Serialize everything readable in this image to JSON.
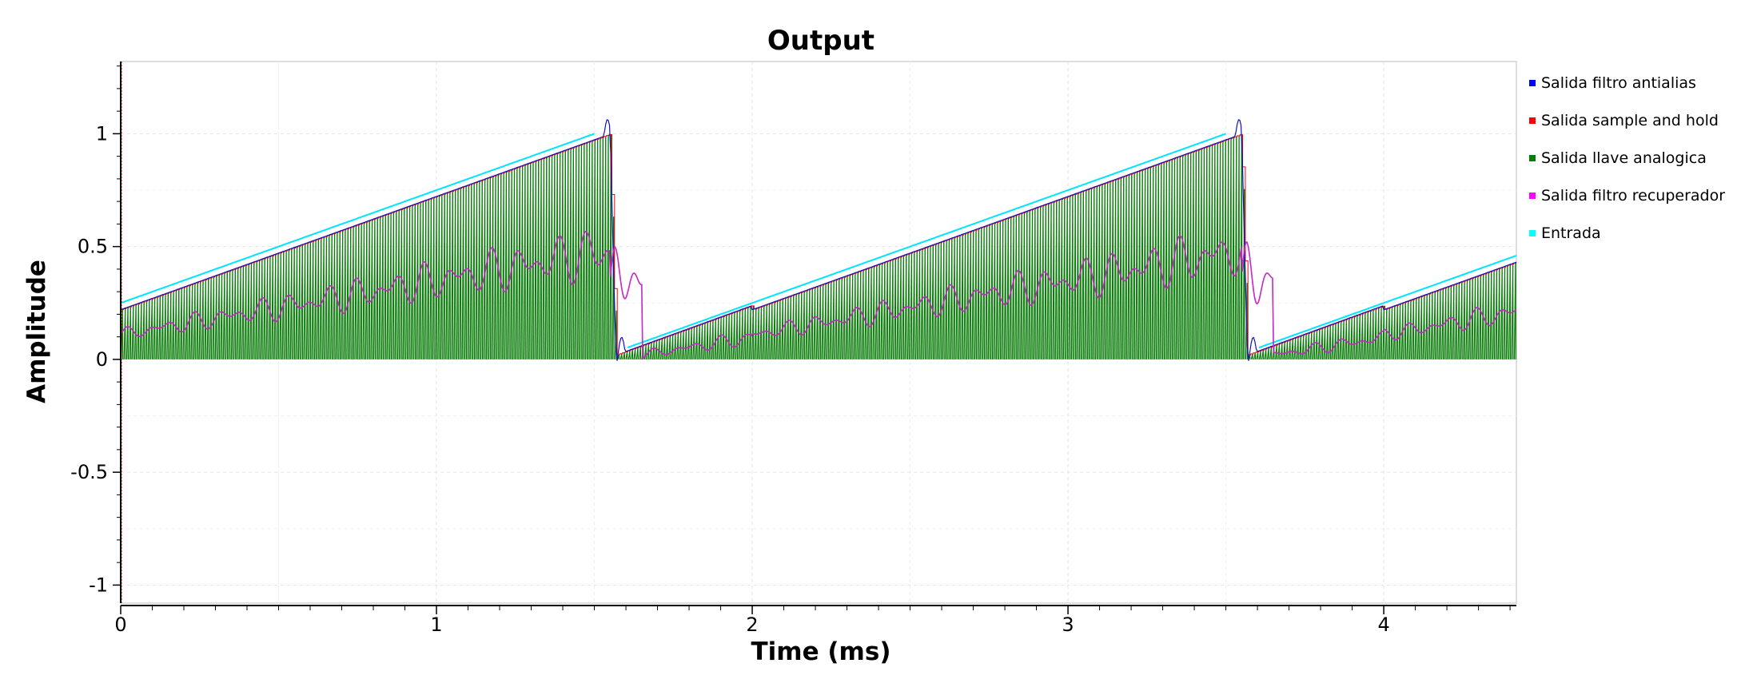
{
  "chart_data": {
    "type": "line",
    "title": "Output",
    "xlabel": "Time (ms)",
    "ylabel": "Amplitude",
    "xlim": [
      0,
      4.42
    ],
    "ylim": [
      -1.08,
      1.32
    ],
    "xticks": [
      0,
      1,
      2,
      3,
      4
    ],
    "xtick_labels": [
      "0",
      "1",
      "2",
      "3",
      "4"
    ],
    "yticks": [
      1,
      0.5,
      0,
      -0.5,
      -1
    ],
    "ytick_labels": [
      "1",
      "0.5",
      "0",
      "-0.5",
      "-1"
    ],
    "grid": true,
    "legend_position": "right",
    "series": [
      {
        "name": "Salida filtro antialias",
        "color": "#0000ff",
        "style": "sawtooth-lowpassed",
        "x": [
          0.0,
          1.5,
          1.55,
          1.57,
          3.5,
          3.55,
          3.57,
          4.42
        ],
        "y": [
          0.22,
          0.98,
          1.07,
          -0.08,
          0.98,
          1.07,
          -0.08,
          0.43
        ]
      },
      {
        "name": "Salida sample and hold",
        "color": "#ff0000",
        "style": "staircase",
        "x": [
          0.0,
          1.55,
          1.57,
          3.55,
          3.57,
          4.42
        ],
        "y": [
          0.22,
          1.0,
          0.02,
          1.0,
          0.02,
          0.43
        ]
      },
      {
        "name": "Salida llave analogica",
        "color": "#008000",
        "style": "sampled-pulses",
        "x": [
          0.0,
          1.55,
          1.57,
          3.55,
          3.57,
          4.42
        ],
        "y": [
          0.22,
          1.0,
          0.02,
          1.0,
          0.02,
          0.43
        ],
        "baseline": 0
      },
      {
        "name": "Salida filtro recuperador",
        "color": "#ff00ff",
        "style": "recovered",
        "x": [
          0.0,
          0.5,
          1.0,
          1.5,
          1.6,
          2.0,
          2.5,
          3.0,
          3.5,
          3.6,
          4.0,
          4.42
        ],
        "y": [
          0.11,
          0.2,
          0.3,
          0.5,
          0.0,
          0.05,
          0.15,
          0.3,
          0.5,
          0.0,
          0.08,
          0.2
        ]
      },
      {
        "name": "Entrada",
        "color": "#00ffff",
        "style": "sawtooth",
        "x": [
          0.0,
          1.5,
          1.6,
          3.5,
          3.6,
          4.42
        ],
        "y": [
          0.25,
          1.0,
          0.05,
          1.0,
          0.05,
          0.45
        ]
      }
    ]
  },
  "legend": {
    "items": [
      {
        "label": "Salida filtro antialias",
        "color": "#0000ff"
      },
      {
        "label": "Salida sample and hold",
        "color": "#ff0000"
      },
      {
        "label": "Salida llave analogica",
        "color": "#008000"
      },
      {
        "label": "Salida filtro recuperador",
        "color": "#ff00ff"
      },
      {
        "label": "Entrada",
        "color": "#00ffff"
      }
    ]
  }
}
